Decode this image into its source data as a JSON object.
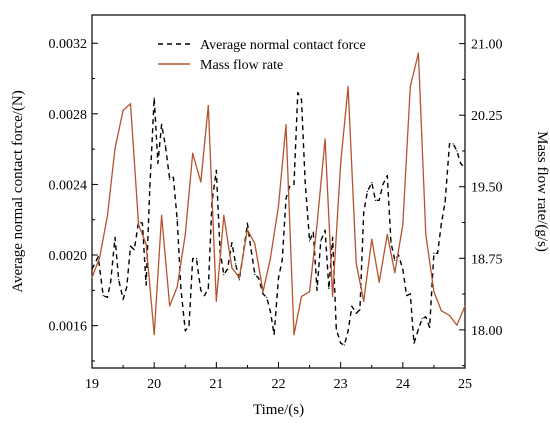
{
  "chart_data": {
    "type": "line",
    "xlabel": "Time/(s)",
    "ylabel_left": "Average normal contact force/(N)",
    "ylabel_right": "Mass flow rate/(g/s)",
    "xlim": [
      19,
      25
    ],
    "ylim_left": [
      0.00136,
      0.00336
    ],
    "ylim_right": [
      17.6,
      21.3
    ],
    "x_ticks": [
      19,
      20,
      21,
      22,
      23,
      24,
      25
    ],
    "x_tick_labels": [
      "19",
      "20",
      "21",
      "22",
      "23",
      "24",
      "25"
    ],
    "y_left_ticks": [
      0.0016,
      0.002,
      0.0024,
      0.0028,
      0.0032
    ],
    "y_left_tick_labels": [
      "0.0016",
      "0.0020",
      "0.0024",
      "0.0028",
      "0.0032"
    ],
    "y_right_ticks": [
      18.0,
      18.75,
      19.5,
      20.25,
      21.0
    ],
    "y_right_tick_labels": [
      "18.00",
      "18.75",
      "19.50",
      "20.25",
      "21.00"
    ],
    "legend_position": "top-center",
    "grid": false,
    "colors": {
      "force": "#000000",
      "flow": "#b5532f"
    },
    "series": [
      {
        "name": "Average normal contact force",
        "axis": "left",
        "style": "dashed",
        "x": [
          19.0,
          19.1,
          19.18,
          19.25,
          19.3,
          19.37,
          19.43,
          19.5,
          19.56,
          19.62,
          19.68,
          19.75,
          19.81,
          19.87,
          19.93,
          20.0,
          20.06,
          20.12,
          20.18,
          20.25,
          20.31,
          20.37,
          20.43,
          20.5,
          20.56,
          20.62,
          20.68,
          20.75,
          20.81,
          20.87,
          20.93,
          21.0,
          21.06,
          21.12,
          21.18,
          21.25,
          21.31,
          21.37,
          21.43,
          21.5,
          21.56,
          21.62,
          21.68,
          21.75,
          21.81,
          21.87,
          21.93,
          22.0,
          22.06,
          22.12,
          22.18,
          22.25,
          22.31,
          22.37,
          22.43,
          22.5,
          22.56,
          22.62,
          22.68,
          22.75,
          22.81,
          22.87,
          22.93,
          23.0,
          23.06,
          23.12,
          23.18,
          23.25,
          23.31,
          23.37,
          23.43,
          23.5,
          23.56,
          23.62,
          23.68,
          23.75,
          23.81,
          23.87,
          23.93,
          24.0,
          24.06,
          24.12,
          24.18,
          24.25,
          24.31,
          24.37,
          24.43,
          24.5,
          24.56,
          24.62,
          24.68,
          24.75,
          24.81,
          24.87,
          24.93,
          25.0
        ],
        "y": [
          0.00192,
          0.00199,
          0.00177,
          0.00176,
          0.00185,
          0.0021,
          0.00186,
          0.00175,
          0.00182,
          0.00205,
          0.00203,
          0.00219,
          0.00218,
          0.00183,
          0.00238,
          0.00289,
          0.00252,
          0.00274,
          0.00262,
          0.00243,
          0.00244,
          0.0022,
          0.00181,
          0.00157,
          0.0016,
          0.00198,
          0.00198,
          0.0018,
          0.00177,
          0.00181,
          0.0023,
          0.00248,
          0.00202,
          0.00189,
          0.00192,
          0.00207,
          0.00195,
          0.00186,
          0.002,
          0.00218,
          0.00203,
          0.00189,
          0.00187,
          0.00178,
          0.00176,
          0.00168,
          0.00155,
          0.00187,
          0.00197,
          0.00232,
          0.00239,
          0.0024,
          0.00292,
          0.00288,
          0.00241,
          0.00208,
          0.00213,
          0.0018,
          0.00208,
          0.00214,
          0.00181,
          0.0021,
          0.00158,
          0.0015,
          0.00149,
          0.00157,
          0.00171,
          0.00167,
          0.00169,
          0.00224,
          0.00236,
          0.00241,
          0.00231,
          0.00231,
          0.0024,
          0.00245,
          0.00207,
          0.00197,
          0.002,
          0.00192,
          0.00177,
          0.00178,
          0.0015,
          0.00158,
          0.00164,
          0.00165,
          0.00159,
          0.00201,
          0.00201,
          0.00218,
          0.0023,
          0.00263,
          0.00263,
          0.00259,
          0.00252,
          0.00249
        ]
      },
      {
        "name": "Mass flow rate",
        "axis": "right",
        "style": "solid",
        "x": [
          19.0,
          19.12,
          19.25,
          19.37,
          19.5,
          19.62,
          19.75,
          19.87,
          20.0,
          20.12,
          20.25,
          20.37,
          20.5,
          20.62,
          20.75,
          20.87,
          21.0,
          21.12,
          21.25,
          21.37,
          21.5,
          21.62,
          21.75,
          21.87,
          22.0,
          22.12,
          22.25,
          22.37,
          22.5,
          22.62,
          22.75,
          22.87,
          23.0,
          23.12,
          23.25,
          23.37,
          23.5,
          23.62,
          23.75,
          23.87,
          24.0,
          24.12,
          24.25,
          24.37,
          24.5,
          24.62,
          24.75,
          24.87,
          25.0
        ],
        "y": [
          18.55,
          18.75,
          19.2,
          19.9,
          20.3,
          20.37,
          19.1,
          18.9,
          17.95,
          19.2,
          18.25,
          18.45,
          19.0,
          19.85,
          19.55,
          20.35,
          18.3,
          19.2,
          18.65,
          18.55,
          19.05,
          18.9,
          18.4,
          18.75,
          19.3,
          20.15,
          17.95,
          18.35,
          18.4,
          19.1,
          20.0,
          18.35,
          19.75,
          20.55,
          18.7,
          18.3,
          18.95,
          18.5,
          19.0,
          18.6,
          19.1,
          20.55,
          20.9,
          19.0,
          18.4,
          18.2,
          18.15,
          18.05,
          18.25
        ]
      }
    ]
  }
}
